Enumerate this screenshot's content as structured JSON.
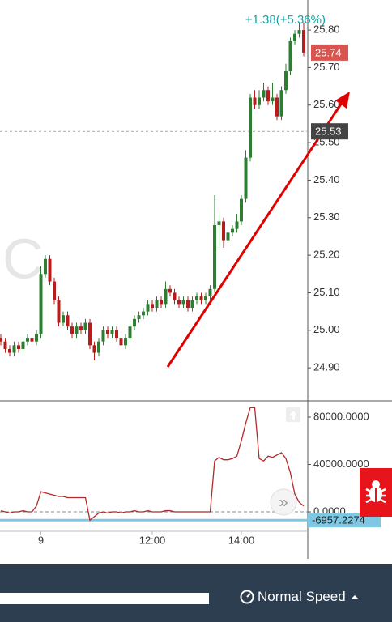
{
  "chart_data": [
    {
      "type": "candlestick",
      "title": "+1.38(+5.36%)",
      "watermark": "C",
      "categories": [
        null,
        null,
        null,
        null,
        null,
        null,
        null,
        null,
        null,
        "9",
        null,
        null,
        null,
        null,
        null,
        null,
        null,
        null,
        null,
        null,
        null,
        null,
        null,
        null,
        null,
        null,
        null,
        null,
        null,
        null,
        null,
        null,
        null,
        null,
        "12:00",
        null,
        null,
        null,
        null,
        null,
        null,
        null,
        null,
        null,
        null,
        null,
        null,
        null,
        null,
        null,
        null,
        null,
        null,
        null,
        "14:00",
        null,
        null,
        null,
        null,
        null,
        null,
        null,
        null,
        null,
        null,
        null,
        null,
        null,
        null
      ],
      "open": [
        24.98,
        24.97,
        24.95,
        24.94,
        24.96,
        24.95,
        24.97,
        24.98,
        24.97,
        24.99,
        25.15,
        25.19,
        25.13,
        25.08,
        25.02,
        25.04,
        25.01,
        24.99,
        25.01,
        25.0,
        25.02,
        24.96,
        24.94,
        24.97,
        25.0,
        24.99,
        25.0,
        24.98,
        24.96,
        24.98,
        25.01,
        25.03,
        25.04,
        25.05,
        25.07,
        25.06,
        25.08,
        25.07,
        25.11,
        25.1,
        25.08,
        25.07,
        25.08,
        25.06,
        25.08,
        25.09,
        25.08,
        25.09,
        25.11,
        25.28,
        25.29,
        25.24,
        25.26,
        25.27,
        25.29,
        25.35,
        25.46,
        25.62,
        25.6,
        25.62,
        25.64,
        25.61,
        25.62,
        25.57,
        25.64,
        25.69,
        25.77,
        25.79,
        25.8
      ],
      "high": [
        24.99,
        24.98,
        24.96,
        24.97,
        24.97,
        24.98,
        24.99,
        24.99,
        25.0,
        25.17,
        25.2,
        25.2,
        25.14,
        25.09,
        25.05,
        25.05,
        25.02,
        25.02,
        25.02,
        25.03,
        25.03,
        24.97,
        24.98,
        25.01,
        25.01,
        25.01,
        25.01,
        24.99,
        24.99,
        25.02,
        25.04,
        25.05,
        25.06,
        25.08,
        25.08,
        25.09,
        25.09,
        25.13,
        25.12,
        25.11,
        25.09,
        25.09,
        25.09,
        25.09,
        25.1,
        25.1,
        25.1,
        25.12,
        25.36,
        25.31,
        25.3,
        25.27,
        25.28,
        25.31,
        25.36,
        25.48,
        25.63,
        25.64,
        25.64,
        25.66,
        25.65,
        25.66,
        25.63,
        25.65,
        25.71,
        25.78,
        25.8,
        25.82,
        25.82
      ],
      "low": [
        24.96,
        24.94,
        24.93,
        24.93,
        24.94,
        24.94,
        24.96,
        24.96,
        24.96,
        24.98,
        25.14,
        25.12,
        25.07,
        25.01,
        25.01,
        25.0,
        24.98,
        24.98,
        24.99,
        24.99,
        24.95,
        24.92,
        24.93,
        24.96,
        24.98,
        24.98,
        24.97,
        24.95,
        24.95,
        24.97,
        25.0,
        25.02,
        25.03,
        25.04,
        25.05,
        25.05,
        25.06,
        25.06,
        25.09,
        25.07,
        25.06,
        25.06,
        25.05,
        25.05,
        25.07,
        25.07,
        25.07,
        25.08,
        25.1,
        25.22,
        25.22,
        25.23,
        25.25,
        25.26,
        25.28,
        25.34,
        25.45,
        25.59,
        25.59,
        25.61,
        25.6,
        25.6,
        25.56,
        25.56,
        25.63,
        25.68,
        25.76,
        25.78,
        25.73
      ],
      "close": [
        24.97,
        24.95,
        24.94,
        24.96,
        24.95,
        24.97,
        24.98,
        24.97,
        24.99,
        25.15,
        25.19,
        25.13,
        25.08,
        25.02,
        25.04,
        25.01,
        24.99,
        25.01,
        25.0,
        25.02,
        24.96,
        24.94,
        24.97,
        25.0,
        24.99,
        25.0,
        24.98,
        24.96,
        24.98,
        25.01,
        25.03,
        25.04,
        25.05,
        25.07,
        25.06,
        25.08,
        25.07,
        25.11,
        25.1,
        25.08,
        25.07,
        25.08,
        25.06,
        25.08,
        25.09,
        25.08,
        25.09,
        25.11,
        25.28,
        25.29,
        25.24,
        25.26,
        25.27,
        25.29,
        25.35,
        25.46,
        25.62,
        25.6,
        25.62,
        25.64,
        25.61,
        25.62,
        25.57,
        25.64,
        25.69,
        25.77,
        25.79,
        25.8,
        25.74
      ],
      "up_color": "#2e7d32",
      "down_color": "#b71c1c",
      "last_price": 25.74,
      "marker_price": 25.53,
      "ylim": [
        24.814,
        25.88
      ],
      "yticks": [
        {
          "value": 24.9,
          "label": "24.90"
        },
        {
          "value": 25.0,
          "label": "25.00"
        },
        {
          "value": 25.1,
          "label": "25.10"
        },
        {
          "value": 25.2,
          "label": "25.20"
        },
        {
          "value": 25.3,
          "label": "25.30"
        },
        {
          "value": 25.4,
          "label": "25.40"
        },
        {
          "value": 25.5,
          "label": "25.50"
        },
        {
          "value": 25.6,
          "label": "25.60"
        },
        {
          "value": 25.7,
          "label": "25.70"
        },
        {
          "value": 25.8,
          "label": "25.80"
        }
      ]
    },
    {
      "type": "line",
      "series": [
        {
          "color": "#b22a2a",
          "values": [
            1000,
            0,
            -1000,
            0,
            0,
            1000,
            0,
            0,
            5000,
            17000,
            16000,
            15000,
            14000,
            13000,
            13000,
            12000,
            12000,
            12000,
            12000,
            12000,
            -7000,
            -4000,
            -1000,
            0,
            -1000,
            0,
            0,
            -1000,
            0,
            0,
            1000,
            0,
            0,
            1000,
            0,
            0,
            0,
            1000,
            1000,
            0,
            0,
            0,
            0,
            0,
            0,
            0,
            0,
            0,
            43000,
            46000,
            44000,
            44000,
            45000,
            47000,
            60000,
            75000,
            88000,
            88000,
            45000,
            43000,
            47000,
            46000,
            48000,
            50000,
            45000,
            33000,
            15000,
            8000,
            5000
          ]
        }
      ],
      "level": -6957.2274,
      "level_color": "#7ec8e3",
      "ylim": [
        -15700,
        93000
      ],
      "yticks": [
        {
          "value": 0,
          "label": "0.0000"
        },
        {
          "value": 40000,
          "label": "40000.0000"
        },
        {
          "value": 80000,
          "label": "80000.0000"
        }
      ]
    }
  ],
  "ui": {
    "speed_label": "Normal Speed"
  }
}
